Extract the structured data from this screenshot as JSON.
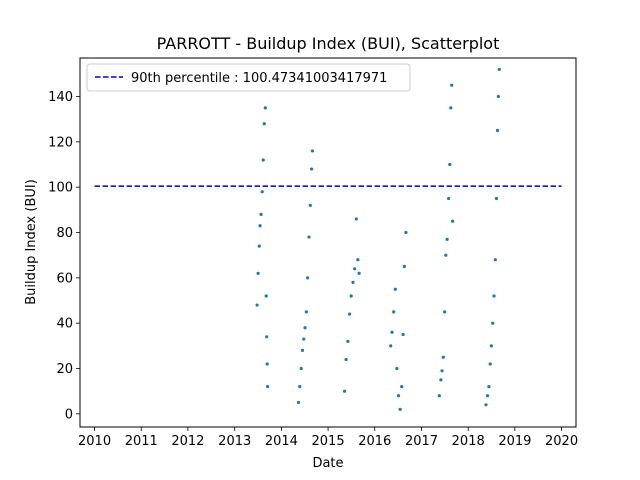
{
  "chart_data": {
    "type": "scatter",
    "title": "PARROTT - Buildup Index (BUI), Scatterplot",
    "xlabel": "Date",
    "ylabel": "Buildup Index (BUI)",
    "xlim": [
      "2009-09-09",
      "2020-04-23"
    ],
    "ylim": [
      -5.8,
      157.0
    ],
    "xticks": [
      "2010",
      "2011",
      "2012",
      "2013",
      "2014",
      "2015",
      "2016",
      "2017",
      "2018",
      "2019",
      "2020"
    ],
    "yticks": [
      0,
      20,
      40,
      60,
      80,
      100,
      120,
      140
    ],
    "grid": false,
    "legend_position": "top-left",
    "colors": {
      "points": "#1f77b4",
      "percentile_line": "#0000cc"
    },
    "percentile_line": {
      "label": "90th percentile : 100.47341003417971",
      "value": 100.47341003417971,
      "x_range": [
        "2010-01-01",
        "2020-01-01"
      ],
      "style": "dashed"
    },
    "seasons": [
      {
        "x": [
          "2013-06-25",
          "2013-07-03",
          "2013-07-12",
          "2013-07-18",
          "2013-07-26",
          "2013-08-04",
          "2013-08-12",
          "2013-08-20",
          "2013-08-28",
          "2013-09-04"
        ],
        "y": [
          48,
          62,
          74,
          83,
          88,
          98,
          112,
          128,
          135,
          52
        ]
      },
      {
        "x": [
          "2013-09-08",
          "2013-09-12",
          "2013-09-15"
        ],
        "y": [
          34,
          22,
          12
        ]
      },
      {
        "x": [
          "2014-05-15",
          "2014-05-25",
          "2014-06-05",
          "2014-06-15",
          "2014-06-25",
          "2014-07-05",
          "2014-07-15",
          "2014-07-25",
          "2014-08-05",
          "2014-08-15",
          "2014-08-25",
          "2014-09-01"
        ],
        "y": [
          5,
          12,
          20,
          28,
          33,
          38,
          45,
          60,
          78,
          92,
          108,
          116
        ]
      },
      {
        "x": [
          "2015-05-10",
          "2015-05-22",
          "2015-06-05",
          "2015-06-18",
          "2015-07-01",
          "2015-07-15",
          "2015-07-28",
          "2015-08-10",
          "2015-08-22",
          "2015-09-01"
        ],
        "y": [
          10,
          24,
          32,
          44,
          52,
          58,
          64,
          86,
          68,
          62
        ]
      },
      {
        "x": [
          "2016-05-05",
          "2016-05-15",
          "2016-05-28",
          "2016-06-10",
          "2016-06-22",
          "2016-07-05",
          "2016-07-18",
          "2016-07-30",
          "2016-08-10",
          "2016-08-20",
          "2016-09-01"
        ],
        "y": [
          30,
          36,
          45,
          55,
          20,
          8,
          2,
          12,
          35,
          65,
          80
        ]
      },
      {
        "x": [
          "2017-05-20",
          "2017-06-01",
          "2017-06-10",
          "2017-06-20",
          "2017-07-01",
          "2017-07-10",
          "2017-07-20",
          "2017-08-01",
          "2017-08-10",
          "2017-08-18",
          "2017-08-25",
          "2017-09-01"
        ],
        "y": [
          8,
          15,
          19,
          25,
          45,
          70,
          77,
          95,
          110,
          135,
          145,
          85
        ]
      },
      {
        "x": [
          "2018-05-20",
          "2018-06-01",
          "2018-06-12",
          "2018-06-22",
          "2018-07-01",
          "2018-07-12",
          "2018-07-22",
          "2018-08-01",
          "2018-08-10",
          "2018-08-18",
          "2018-08-25",
          "2018-09-01"
        ],
        "y": [
          4,
          8,
          12,
          22,
          30,
          40,
          52,
          68,
          95,
          125,
          140,
          152
        ]
      }
    ]
  }
}
